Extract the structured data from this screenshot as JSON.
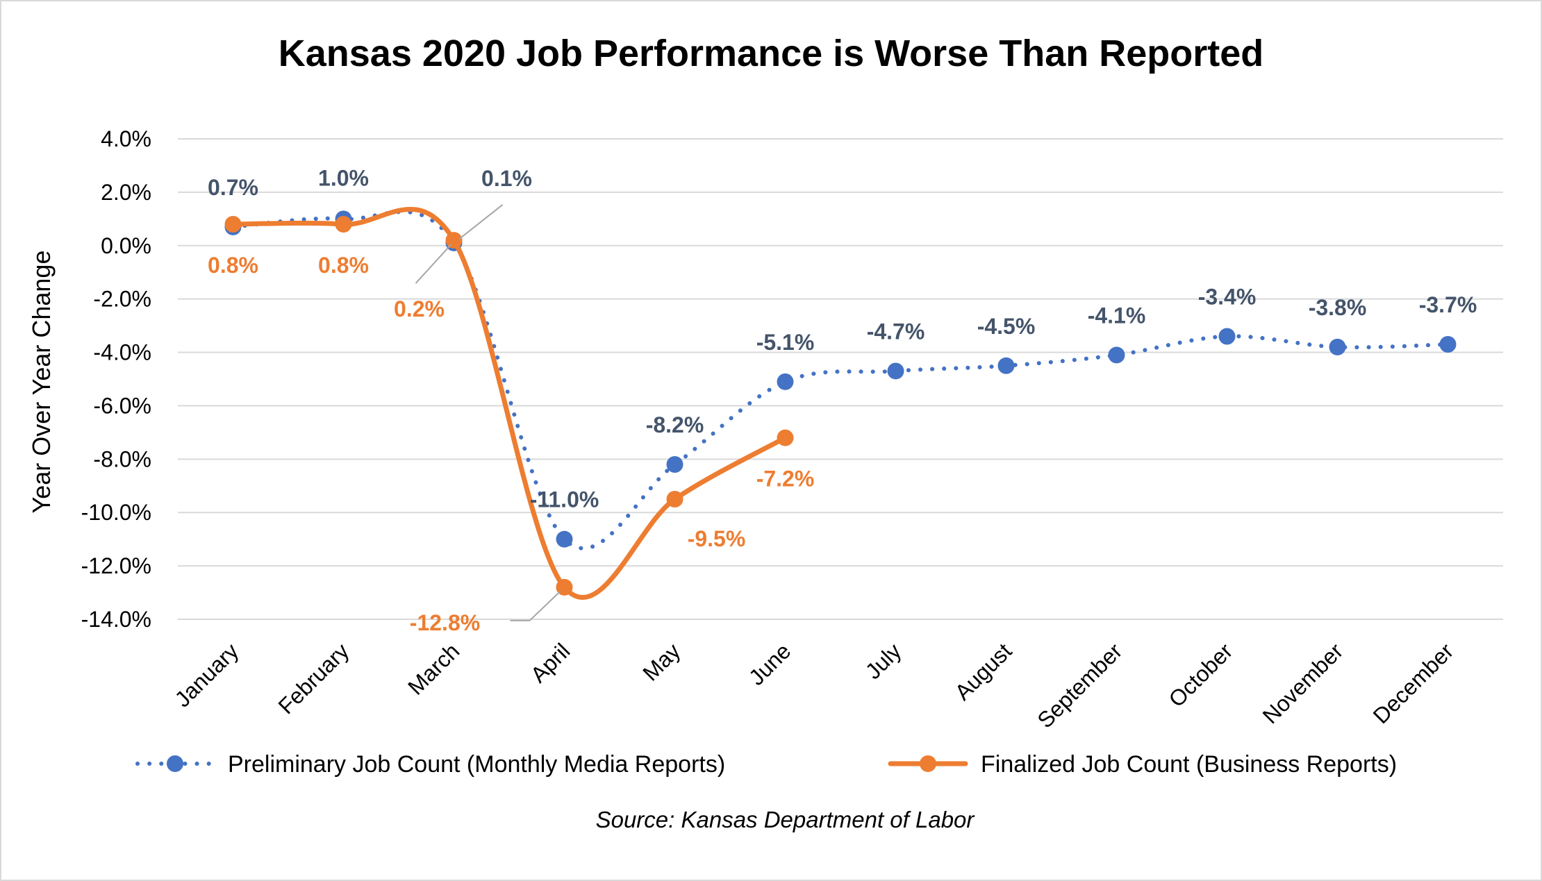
{
  "chart_data": {
    "type": "line",
    "title": "Kansas 2020 Job Performance is Worse Than Reported",
    "ylabel": "Year Over Year Change",
    "xlabel": "",
    "categories": [
      "January",
      "February",
      "March",
      "April",
      "May",
      "June",
      "July",
      "August",
      "September",
      "October",
      "November",
      "December"
    ],
    "ylim": [
      -14,
      4
    ],
    "yticks": [
      4,
      2,
      0,
      -2,
      -4,
      -6,
      -8,
      -10,
      -12,
      -14
    ],
    "ytick_labels": [
      "4.0%",
      "2.0%",
      "0.0%",
      "-2.0%",
      "-4.0%",
      "-6.0%",
      "-8.0%",
      "-10.0%",
      "-12.0%",
      "-14.0%"
    ],
    "grid": true,
    "legend_position": "bottom",
    "source": "Source: Kansas Department of Labor",
    "series": [
      {
        "name": "Preliminary Job Count (Monthly Media Reports)",
        "color": "#4472c4",
        "style": "dotted",
        "values": [
          0.7,
          1.0,
          0.1,
          -11.0,
          -8.2,
          -5.1,
          -4.7,
          -4.5,
          -4.1,
          -3.4,
          -3.8,
          -3.7
        ],
        "labels": [
          "0.7%",
          "1.0%",
          "0.1%",
          "-11.0%",
          "-8.2%",
          "-5.1%",
          "-4.7%",
          "-4.5%",
          "-4.1%",
          "-3.4%",
          "-3.8%",
          "-3.7%"
        ],
        "label_color": "#44546a"
      },
      {
        "name": "Finalized Job Count (Business Reports)",
        "color": "#ed7d31",
        "style": "solid",
        "values": [
          0.8,
          0.8,
          0.2,
          -12.8,
          -9.5,
          -7.2,
          null,
          null,
          null,
          null,
          null,
          null
        ],
        "labels": [
          "0.8%",
          "0.8%",
          "0.2%",
          "-12.8%",
          "-9.5%",
          "-7.2%",
          null,
          null,
          null,
          null,
          null,
          null
        ],
        "label_color": "#ed7d31"
      }
    ]
  }
}
